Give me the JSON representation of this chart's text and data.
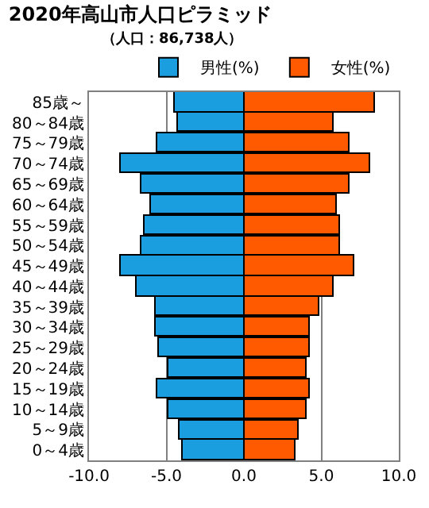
{
  "chart_data": {
    "type": "bar",
    "orientation": "horizontal",
    "title": "2020年高山市人口ピラミッド",
    "subtitle": "（人口：86,738人）",
    "categories": [
      "85歳～",
      "80～84歳",
      "75～79歳",
      "70～74歳",
      "65～69歳",
      "60～64歳",
      "55～59歳",
      "50～54歳",
      "45～49歳",
      "40～44歳",
      "35～39歳",
      "30～34歳",
      "25～29歳",
      "20～24歳",
      "15～19歳",
      "10～14歳",
      "5～9歳",
      "0～4歳"
    ],
    "series": [
      {
        "name": "男性(%)",
        "color": "#1a9ee0",
        "values": [
          -4.5,
          -4.3,
          -5.6,
          -7.9,
          -6.6,
          -6.0,
          -6.4,
          -6.6,
          -7.9,
          -6.9,
          -5.7,
          -5.7,
          -5.5,
          -4.9,
          -5.6,
          -4.9,
          -4.2,
          -4.0
        ]
      },
      {
        "name": "女性(%)",
        "color": "#ff5a00",
        "values": [
          8.5,
          5.8,
          6.8,
          8.2,
          6.8,
          6.0,
          6.2,
          6.2,
          7.1,
          5.8,
          4.9,
          4.3,
          4.3,
          4.0,
          4.3,
          4.1,
          3.5,
          3.3
        ]
      }
    ],
    "xlim": [
      -10,
      10
    ],
    "xticks": [
      {
        "value": -10,
        "label": "-10.0"
      },
      {
        "value": -5,
        "label": "-5.0"
      },
      {
        "value": 0,
        "label": "0.0"
      },
      {
        "value": 5,
        "label": "5.0"
      },
      {
        "value": 10,
        "label": "10.0"
      }
    ],
    "grid": "x",
    "legend": "top right",
    "stacked": true
  }
}
